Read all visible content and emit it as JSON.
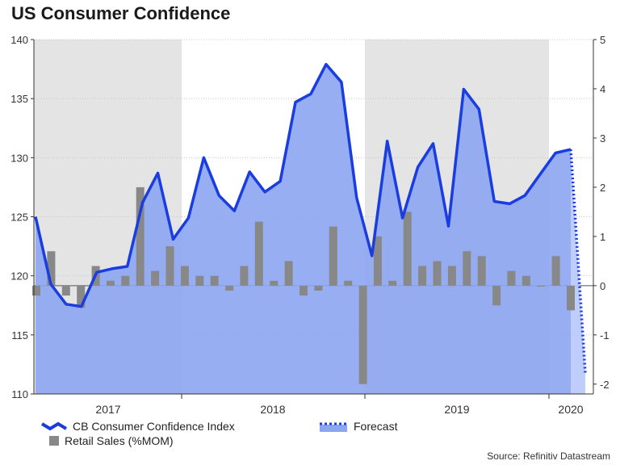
{
  "chart_data": {
    "type": "line+bar",
    "title": "US Consumer Confidence",
    "left_axis": {
      "ticks": [
        "140",
        "135",
        "130",
        "125",
        "120",
        "115",
        "110"
      ],
      "ylim": [
        110,
        140
      ]
    },
    "right_axis": {
      "ticks": [
        "5",
        "4",
        "3",
        "2",
        "1",
        "0",
        "-1",
        "-2"
      ],
      "ylim": [
        -2.2,
        5
      ]
    },
    "x_labels": [
      "2017",
      "2018",
      "2019",
      "2020"
    ],
    "series": [
      {
        "name": "CB Consumer Confidence Index",
        "color": "#1a3de0",
        "values": [
          125.0,
          119.3,
          117.6,
          117.4,
          120.3,
          120.6,
          120.8,
          126.2,
          128.7,
          123.1,
          124.9,
          130.0,
          126.8,
          125.5,
          128.8,
          127.1,
          128.0,
          134.7,
          135.4,
          137.9,
          136.4,
          126.6,
          121.7,
          131.4,
          124.9,
          129.2,
          131.2,
          124.2,
          135.8,
          134.1,
          126.3,
          126.1,
          126.8,
          128.6,
          130.4,
          130.7
        ],
        "forecast": [
          130.7,
          111.8
        ]
      },
      {
        "name": "Retail Sales (%MOM)",
        "color": "#888888",
        "values": [
          -0.2,
          0.7,
          -0.2,
          -0.45,
          0.4,
          0.1,
          0.2,
          2.0,
          0.3,
          0.8,
          0.4,
          0.2,
          0.2,
          -0.1,
          0.4,
          1.3,
          0.1,
          0.5,
          -0.2,
          -0.1,
          1.2,
          0.1,
          -2.0,
          1.0,
          0.1,
          1.5,
          0.4,
          0.5,
          0.4,
          0.7,
          0.6,
          -0.4,
          0.3,
          0.2,
          0.0,
          0.6,
          -0.5
        ]
      }
    ],
    "shaded_years": [
      "2017",
      "2019"
    ]
  },
  "legend": {
    "line_label": "CB Consumer Confidence Index",
    "forecast_label": "Forecast",
    "bar_label": "Retail Sales (%MOM)"
  },
  "colors": {
    "line": "#1a3de0",
    "area": "#8ca5f2",
    "forecast_area": "#b8c8fb",
    "bar": "#888888",
    "shade": "#e4e4e4"
  },
  "source": "Source: Refinitiv Datastream"
}
